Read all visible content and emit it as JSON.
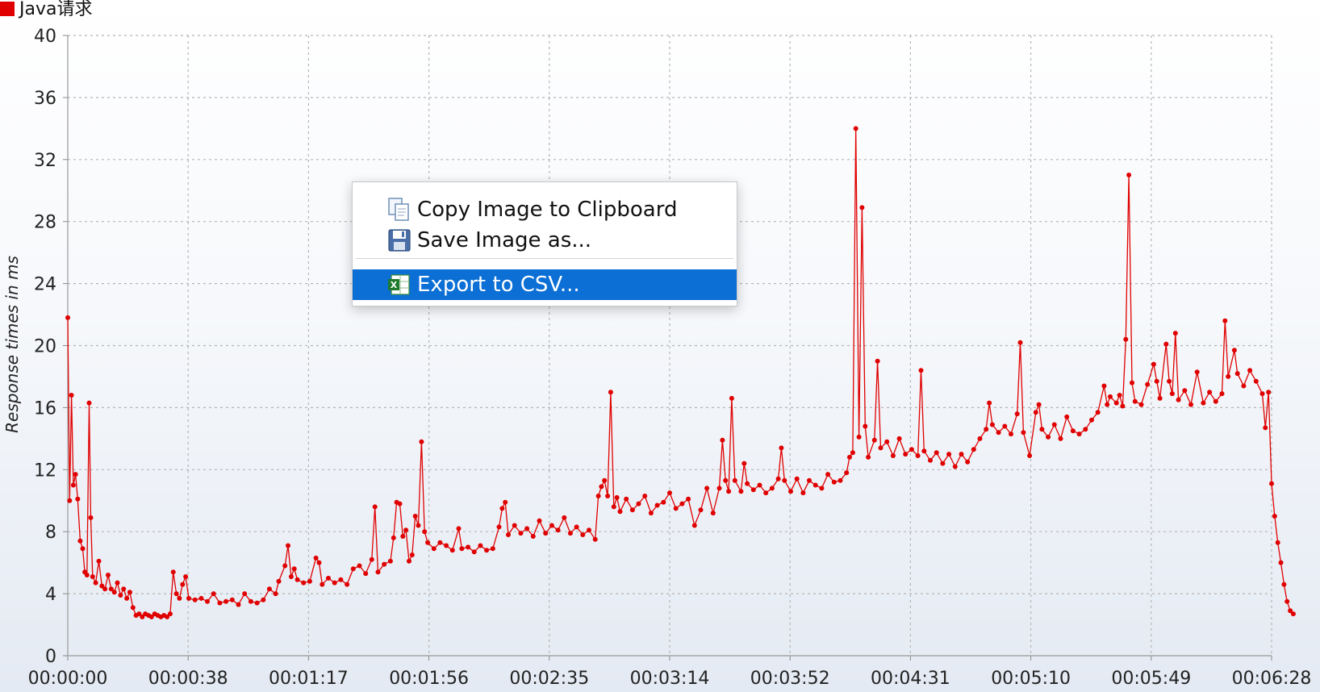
{
  "legend": {
    "label": "Java请求",
    "color": "#e00000"
  },
  "colors": {
    "series": "#e00000",
    "grid": "#b5b5b5",
    "menu_highlight": "#0b6fd6"
  },
  "context_menu": {
    "items": [
      {
        "label": "Copy Image to Clipboard",
        "icon": "copy-icon"
      },
      {
        "label": "Save Image as...",
        "icon": "floppy-disk-icon"
      },
      {
        "label": "Export to CSV...",
        "icon": "spreadsheet-icon",
        "highlighted": true
      }
    ]
  },
  "chart_data": {
    "type": "line",
    "ylabel": "Response times in ms",
    "ylim": [
      0,
      40
    ],
    "yticks": [
      "0",
      "4",
      "8",
      "12",
      "16",
      "20",
      "24",
      "28",
      "32",
      "36",
      "40"
    ],
    "xticks": [
      "00:00:00",
      "00:00:38",
      "00:01:17",
      "00:01:56",
      "00:02:35",
      "00:03:14",
      "00:03:52",
      "00:04:31",
      "00:05:10",
      "00:05:49",
      "00:06:28"
    ],
    "xlim_seconds": [
      0,
      388
    ],
    "grid": true,
    "legend_position": "top-left",
    "series": [
      {
        "name": "Java请求",
        "points": [
          [
            0,
            21.8
          ],
          [
            0.6,
            10
          ],
          [
            1.2,
            16.8
          ],
          [
            1.8,
            11
          ],
          [
            2.5,
            11.7
          ],
          [
            3.2,
            10.1
          ],
          [
            4,
            7.4
          ],
          [
            4.8,
            6.9
          ],
          [
            5.5,
            5.4
          ],
          [
            6.2,
            5.2
          ],
          [
            6.9,
            16.3
          ],
          [
            7.4,
            8.9
          ],
          [
            8,
            5.1
          ],
          [
            9,
            4.7
          ],
          [
            10,
            6.1
          ],
          [
            11,
            4.5
          ],
          [
            12,
            4.3
          ],
          [
            13,
            5.2
          ],
          [
            14,
            4.3
          ],
          [
            15,
            4.1
          ],
          [
            16,
            4.7
          ],
          [
            17,
            3.9
          ],
          [
            18,
            4.3
          ],
          [
            19,
            3.7
          ],
          [
            20,
            4.1
          ],
          [
            21,
            3.1
          ],
          [
            22,
            2.6
          ],
          [
            23,
            2.7
          ],
          [
            24,
            2.5
          ],
          [
            25,
            2.7
          ],
          [
            26,
            2.6
          ],
          [
            27,
            2.5
          ],
          [
            28,
            2.7
          ],
          [
            29,
            2.6
          ],
          [
            30,
            2.5
          ],
          [
            31,
            2.6
          ],
          [
            32,
            2.5
          ],
          [
            33,
            2.7
          ],
          [
            34,
            5.4
          ],
          [
            35,
            4.0
          ],
          [
            36,
            3.7
          ],
          [
            37,
            4.6
          ],
          [
            38,
            5.1
          ],
          [
            39,
            3.7
          ],
          [
            41,
            3.6
          ],
          [
            43,
            3.7
          ],
          [
            45,
            3.5
          ],
          [
            47,
            4.0
          ],
          [
            49,
            3.4
          ],
          [
            51,
            3.5
          ],
          [
            53,
            3.6
          ],
          [
            55,
            3.3
          ],
          [
            57,
            4.0
          ],
          [
            59,
            3.5
          ],
          [
            61,
            3.4
          ],
          [
            63,
            3.6
          ],
          [
            65,
            4.3
          ],
          [
            67,
            4.0
          ],
          [
            68,
            4.8
          ],
          [
            70,
            5.8
          ],
          [
            71,
            7.1
          ],
          [
            72,
            5.1
          ],
          [
            73,
            5.6
          ],
          [
            74,
            4.9
          ],
          [
            76,
            4.7
          ],
          [
            78,
            4.8
          ],
          [
            80,
            6.3
          ],
          [
            81,
            6.0
          ],
          [
            82,
            4.6
          ],
          [
            84,
            5.0
          ],
          [
            86,
            4.7
          ],
          [
            88,
            4.9
          ],
          [
            90,
            4.6
          ],
          [
            92,
            5.6
          ],
          [
            94,
            5.8
          ],
          [
            96,
            5.3
          ],
          [
            98,
            6.2
          ],
          [
            99,
            9.6
          ],
          [
            100,
            5.4
          ],
          [
            102,
            5.9
          ],
          [
            104,
            6.1
          ],
          [
            105,
            7.6
          ],
          [
            106,
            9.9
          ],
          [
            107,
            9.8
          ],
          [
            108,
            7.7
          ],
          [
            109,
            8.1
          ],
          [
            110,
            6.1
          ],
          [
            111,
            6.5
          ],
          [
            112,
            9.0
          ],
          [
            113,
            8.4
          ],
          [
            114,
            13.8
          ],
          [
            115,
            8.0
          ],
          [
            116,
            7.3
          ],
          [
            118,
            6.9
          ],
          [
            120,
            7.3
          ],
          [
            122,
            7.1
          ],
          [
            124,
            6.8
          ],
          [
            126,
            8.2
          ],
          [
            127,
            6.9
          ],
          [
            129,
            7.0
          ],
          [
            131,
            6.7
          ],
          [
            133,
            7.1
          ],
          [
            135,
            6.8
          ],
          [
            137,
            6.9
          ],
          [
            139,
            8.3
          ],
          [
            140,
            9.5
          ],
          [
            141,
            9.9
          ],
          [
            142,
            7.8
          ],
          [
            144,
            8.4
          ],
          [
            146,
            7.9
          ],
          [
            148,
            8.2
          ],
          [
            150,
            7.7
          ],
          [
            152,
            8.7
          ],
          [
            154,
            7.9
          ],
          [
            156,
            8.4
          ],
          [
            158,
            8.1
          ],
          [
            160,
            8.9
          ],
          [
            162,
            7.9
          ],
          [
            164,
            8.3
          ],
          [
            166,
            7.8
          ],
          [
            168,
            8.1
          ],
          [
            170,
            7.5
          ],
          [
            171,
            10.3
          ],
          [
            172,
            10.9
          ],
          [
            173,
            11.3
          ],
          [
            174,
            10.3
          ],
          [
            175,
            17.0
          ],
          [
            176,
            9.6
          ],
          [
            177,
            10.2
          ],
          [
            178,
            9.3
          ],
          [
            180,
            10.1
          ],
          [
            182,
            9.4
          ],
          [
            184,
            9.8
          ],
          [
            186,
            10.3
          ],
          [
            188,
            9.2
          ],
          [
            190,
            9.7
          ],
          [
            192,
            9.9
          ],
          [
            194,
            10.5
          ],
          [
            196,
            9.5
          ],
          [
            198,
            9.8
          ],
          [
            200,
            10.1
          ],
          [
            202,
            8.4
          ],
          [
            204,
            9.4
          ],
          [
            206,
            10.8
          ],
          [
            208,
            9.2
          ],
          [
            210,
            10.8
          ],
          [
            211,
            13.9
          ],
          [
            212,
            11.3
          ],
          [
            213,
            10.6
          ],
          [
            214,
            16.6
          ],
          [
            215,
            11.3
          ],
          [
            217,
            10.6
          ],
          [
            218,
            12.4
          ],
          [
            219,
            11.1
          ],
          [
            221,
            10.7
          ],
          [
            223,
            11.0
          ],
          [
            225,
            10.5
          ],
          [
            227,
            10.8
          ],
          [
            229,
            11.4
          ],
          [
            230,
            13.4
          ],
          [
            231,
            11.3
          ],
          [
            233,
            10.6
          ],
          [
            235,
            11.4
          ],
          [
            237,
            10.5
          ],
          [
            239,
            11.3
          ],
          [
            241,
            11.0
          ],
          [
            243,
            10.8
          ],
          [
            245,
            11.7
          ],
          [
            247,
            11.2
          ],
          [
            249,
            11.3
          ],
          [
            251,
            11.8
          ],
          [
            252,
            12.8
          ],
          [
            253,
            13.1
          ],
          [
            254,
            34.0
          ],
          [
            255,
            14.1
          ],
          [
            256,
            28.9
          ],
          [
            257,
            14.8
          ],
          [
            258,
            12.8
          ],
          [
            260,
            13.9
          ],
          [
            261,
            19.0
          ],
          [
            262,
            13.4
          ],
          [
            264,
            13.8
          ],
          [
            266,
            12.9
          ],
          [
            268,
            14.0
          ],
          [
            270,
            13.0
          ],
          [
            272,
            13.3
          ],
          [
            274,
            12.9
          ],
          [
            275,
            18.4
          ],
          [
            276,
            13.2
          ],
          [
            278,
            12.6
          ],
          [
            280,
            13.1
          ],
          [
            282,
            12.4
          ],
          [
            284,
            13.0
          ],
          [
            286,
            12.2
          ],
          [
            288,
            13.0
          ],
          [
            290,
            12.5
          ],
          [
            292,
            13.3
          ],
          [
            294,
            14.0
          ],
          [
            296,
            14.6
          ],
          [
            297,
            16.3
          ],
          [
            298,
            14.9
          ],
          [
            300,
            14.4
          ],
          [
            302,
            14.8
          ],
          [
            304,
            14.3
          ],
          [
            306,
            15.6
          ],
          [
            307,
            20.2
          ],
          [
            308,
            14.4
          ],
          [
            310,
            12.9
          ],
          [
            312,
            15.7
          ],
          [
            313,
            16.2
          ],
          [
            314,
            14.6
          ],
          [
            316,
            14.1
          ],
          [
            318,
            14.9
          ],
          [
            320,
            14.0
          ],
          [
            322,
            15.4
          ],
          [
            324,
            14.5
          ],
          [
            326,
            14.3
          ],
          [
            328,
            14.6
          ],
          [
            330,
            15.2
          ],
          [
            332,
            15.7
          ],
          [
            334,
            17.4
          ],
          [
            335,
            16.2
          ],
          [
            336,
            16.7
          ],
          [
            338,
            16.3
          ],
          [
            339,
            16.8
          ],
          [
            340,
            16.1
          ],
          [
            341,
            20.4
          ],
          [
            342,
            31.0
          ],
          [
            343,
            17.6
          ],
          [
            344,
            16.4
          ],
          [
            346,
            16.2
          ],
          [
            348,
            17.5
          ],
          [
            350,
            18.8
          ],
          [
            351,
            17.7
          ],
          [
            352,
            16.6
          ],
          [
            354,
            20.1
          ],
          [
            355,
            17.7
          ],
          [
            356,
            16.9
          ],
          [
            357,
            20.8
          ],
          [
            358,
            16.5
          ],
          [
            360,
            17.1
          ],
          [
            362,
            16.2
          ],
          [
            364,
            18.3
          ],
          [
            366,
            16.3
          ],
          [
            368,
            17.0
          ],
          [
            370,
            16.4
          ],
          [
            372,
            16.9
          ],
          [
            373,
            21.6
          ],
          [
            374,
            18.0
          ],
          [
            376,
            19.7
          ],
          [
            377,
            18.2
          ],
          [
            379,
            17.4
          ],
          [
            381,
            18.4
          ],
          [
            383,
            17.7
          ],
          [
            385,
            16.9
          ],
          [
            386,
            14.7
          ],
          [
            387,
            17.0
          ],
          [
            388,
            11.1
          ],
          [
            389,
            9.0
          ],
          [
            390,
            7.3
          ],
          [
            391,
            6.0
          ],
          [
            392,
            4.6
          ],
          [
            393,
            3.5
          ],
          [
            394,
            2.9
          ],
          [
            395,
            2.7
          ]
        ]
      }
    ]
  }
}
